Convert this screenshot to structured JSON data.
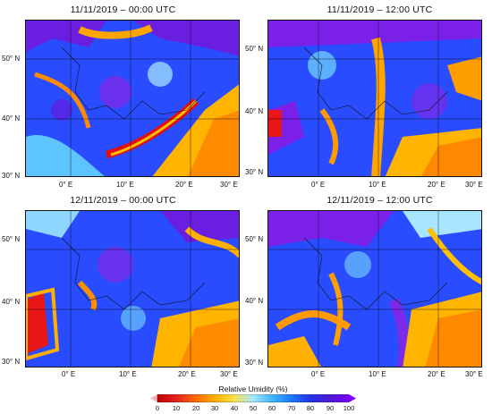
{
  "panels": [
    {
      "title": "11/11/2019 – 00:00 UTC"
    },
    {
      "title": "11/11/2019 – 12:00 UTC"
    },
    {
      "title": "12/11/2019 – 00:00 UTC"
    },
    {
      "title": "12/11/2019 – 12:00 UTC"
    }
  ],
  "lat_labels": [
    "50° N",
    "40° N",
    "30° N"
  ],
  "lon_labels": [
    "0° E",
    "10° E",
    "20° E",
    "30° E"
  ],
  "colorbar": {
    "title": "Relative Umidity (%)",
    "ticks": [
      "0",
      "10",
      "20",
      "30",
      "40",
      "50",
      "60",
      "70",
      "80",
      "90",
      "100"
    ],
    "colors": [
      "#c00000",
      "#e32222",
      "#ff6a00",
      "#ffae00",
      "#ffe04a",
      "#a6e8ff",
      "#3fb5ff",
      "#1d78ff",
      "#2232e8",
      "#4a1ad0",
      "#7c00ff"
    ]
  }
}
